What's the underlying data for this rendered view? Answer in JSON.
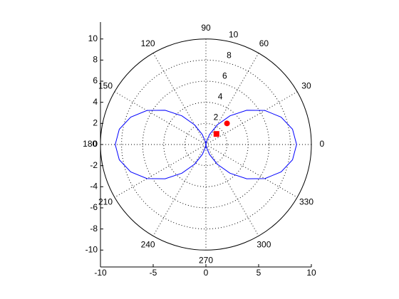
{
  "chart_data": {
    "type": "polar",
    "xlim": [
      -10,
      10
    ],
    "ylim": [
      -11.6,
      11.6
    ],
    "xticks": [
      -10,
      -5,
      0,
      5,
      10
    ],
    "yticks": [
      -10,
      -8,
      -6,
      -4,
      -2,
      0,
      2,
      4,
      6,
      8,
      10
    ],
    "rlim": [
      0,
      10
    ],
    "rticks": [
      2,
      4,
      6,
      8,
      10
    ],
    "thetaticks": [
      0,
      30,
      60,
      90,
      120,
      150,
      180,
      210,
      240,
      270,
      300,
      330
    ],
    "grid": true,
    "series": [
      {
        "color": "#0000ff",
        "theta": [
          0,
          10,
          20,
          30,
          40,
          50,
          60,
          70,
          80,
          90,
          100,
          110,
          120,
          130,
          140,
          150,
          160,
          170,
          180,
          190,
          200,
          210,
          220,
          230,
          240,
          250,
          260,
          270,
          280,
          290,
          300,
          310,
          320,
          330,
          340,
          350,
          360
        ],
        "r": [
          8.6,
          8.34,
          7.59,
          6.45,
          5.05,
          3.55,
          2.15,
          1.01,
          0.26,
          0,
          0.26,
          1.01,
          2.15,
          3.55,
          5.05,
          6.45,
          7.59,
          8.34,
          8.6,
          8.34,
          7.59,
          6.45,
          5.05,
          3.55,
          2.15,
          1.01,
          0.26,
          0,
          0.26,
          1.01,
          2.15,
          3.55,
          5.05,
          6.45,
          7.59,
          8.34,
          8.6
        ]
      }
    ],
    "markers": [
      {
        "marker": "circle",
        "color": "#ff0000",
        "x": [
          2
        ],
        "y": [
          2
        ]
      },
      {
        "marker": "square",
        "color": "#ff0000",
        "x": [
          1
        ],
        "y": [
          1
        ]
      }
    ]
  }
}
